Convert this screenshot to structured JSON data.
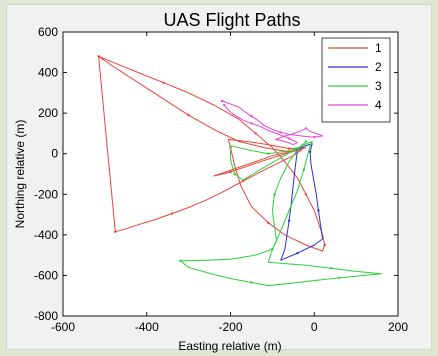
{
  "chart_data": {
    "type": "line",
    "title": "UAS Flight Paths",
    "xlabel": "Easting relative (m)",
    "ylabel": "Northing relative (m)",
    "xlim": [
      -600,
      200
    ],
    "ylim": [
      -800,
      600
    ],
    "x_ticks": [
      "-600",
      "-400",
      "-200",
      "0",
      "200"
    ],
    "y_ticks": [
      "600",
      "400",
      "200",
      "0",
      "-200",
      "-400",
      "-600",
      "-800"
    ],
    "grid": false,
    "legend_position": "top-right",
    "series": [
      {
        "name": "1",
        "color": "#e8453c",
        "points": [
          [
            -515,
            480
          ],
          [
            -480,
            430
          ],
          [
            -420,
            350
          ],
          [
            -360,
            270
          ],
          [
            -300,
            190
          ],
          [
            -240,
            120
          ],
          [
            -180,
            60
          ],
          [
            -120,
            30
          ],
          [
            -60,
            10
          ],
          [
            -30,
            20
          ],
          [
            -50,
            -10
          ],
          [
            -110,
            -70
          ],
          [
            -170,
            -135
          ],
          [
            -220,
            -190
          ],
          [
            -260,
            -230
          ],
          [
            -300,
            -265
          ],
          [
            -340,
            -295
          ],
          [
            -380,
            -325
          ],
          [
            -420,
            -350
          ],
          [
            -450,
            -370
          ],
          [
            -475,
            -385
          ],
          [
            -515,
            480
          ],
          [
            -480,
            450
          ],
          [
            -420,
            400
          ],
          [
            -360,
            350
          ],
          [
            -300,
            300
          ],
          [
            -240,
            240
          ],
          [
            -180,
            170
          ],
          [
            -140,
            100
          ],
          [
            -100,
            30
          ],
          [
            -70,
            -40
          ],
          [
            -40,
            -120
          ],
          [
            -20,
            -200
          ],
          [
            0,
            -280
          ],
          [
            10,
            -340
          ],
          [
            20,
            -400
          ],
          [
            25,
            -450
          ],
          [
            20,
            -480
          ],
          [
            -20,
            -450
          ],
          [
            -70,
            -400
          ],
          [
            -110,
            -340
          ],
          [
            -150,
            -260
          ],
          [
            -175,
            -160
          ],
          [
            -190,
            -60
          ],
          [
            -200,
            30
          ],
          [
            -205,
            70
          ],
          [
            -160,
            60
          ],
          [
            -110,
            45
          ],
          [
            -60,
            25
          ],
          [
            -20,
            30
          ],
          [
            -60,
            5
          ],
          [
            -130,
            -40
          ],
          [
            -200,
            -90
          ],
          [
            -240,
            -110
          ],
          [
            -170,
            -60
          ],
          [
            -100,
            -10
          ],
          [
            -40,
            20
          ]
        ]
      },
      {
        "name": "2",
        "color": "#2a33cc",
        "points": [
          [
            -40,
            20
          ],
          [
            -45,
            -60
          ],
          [
            -50,
            -150
          ],
          [
            -55,
            -250
          ],
          [
            -60,
            -330
          ],
          [
            -65,
            -400
          ],
          [
            -70,
            -470
          ],
          [
            -80,
            -525
          ],
          [
            -40,
            -490
          ],
          [
            0,
            -450
          ],
          [
            20,
            -420
          ],
          [
            15,
            -350
          ],
          [
            10,
            -280
          ],
          [
            5,
            -200
          ],
          [
            -2,
            -120
          ],
          [
            -8,
            -50
          ],
          [
            -10,
            10
          ],
          [
            -5,
            50
          ],
          [
            -20,
            40
          ],
          [
            -35,
            25
          ]
        ]
      },
      {
        "name": "3",
        "color": "#2fd13a",
        "points": [
          [
            -20,
            60
          ],
          [
            -40,
            20
          ],
          [
            -60,
            -40
          ],
          [
            -80,
            -120
          ],
          [
            -95,
            -200
          ],
          [
            -100,
            -280
          ],
          [
            -95,
            -360
          ],
          [
            -90,
            -430
          ],
          [
            -100,
            -470
          ],
          [
            -140,
            -500
          ],
          [
            -200,
            -520
          ],
          [
            -260,
            -525
          ],
          [
            -320,
            -528
          ],
          [
            -300,
            -560
          ],
          [
            -250,
            -590
          ],
          [
            -200,
            -615
          ],
          [
            -150,
            -635
          ],
          [
            -110,
            -650
          ],
          [
            -60,
            -640
          ],
          [
            0,
            -625
          ],
          [
            60,
            -612
          ],
          [
            120,
            -600
          ],
          [
            160,
            -592
          ],
          [
            100,
            -580
          ],
          [
            40,
            -565
          ],
          [
            -20,
            -550
          ],
          [
            -80,
            -540
          ],
          [
            -110,
            -535
          ],
          [
            -100,
            -470
          ],
          [
            -80,
            -380
          ],
          [
            -60,
            -280
          ],
          [
            -40,
            -180
          ],
          [
            -25,
            -80
          ],
          [
            -15,
            0
          ],
          [
            -10,
            40
          ],
          [
            -5,
            60
          ],
          [
            -30,
            40
          ],
          [
            -80,
            -20
          ],
          [
            -130,
            -80
          ],
          [
            -170,
            -130
          ],
          [
            -190,
            -100
          ],
          [
            -200,
            -30
          ],
          [
            -200,
            40
          ],
          [
            -160,
            20
          ],
          [
            -110,
            0
          ],
          [
            -60,
            15
          ],
          [
            -40,
            30
          ]
        ]
      },
      {
        "name": "4",
        "color": "#e44ad6",
        "points": [
          [
            -220,
            260
          ],
          [
            -200,
            245
          ],
          [
            -180,
            230
          ],
          [
            -165,
            205
          ],
          [
            -150,
            185
          ],
          [
            -135,
            165
          ],
          [
            -120,
            140
          ],
          [
            -100,
            120
          ],
          [
            -80,
            105
          ],
          [
            -60,
            95
          ],
          [
            -40,
            90
          ],
          [
            -20,
            85
          ],
          [
            0,
            82
          ],
          [
            20,
            88
          ],
          [
            10,
            95
          ],
          [
            -10,
            110
          ],
          [
            -20,
            125
          ],
          [
            -35,
            110
          ],
          [
            -55,
            95
          ],
          [
            -75,
            85
          ],
          [
            -90,
            70
          ],
          [
            -70,
            60
          ],
          [
            -50,
            45
          ],
          [
            -40,
            55
          ],
          [
            -60,
            75
          ],
          [
            -85,
            95
          ],
          [
            -110,
            115
          ],
          [
            -130,
            135
          ],
          [
            -150,
            150
          ],
          [
            -170,
            165
          ],
          [
            -190,
            190
          ],
          [
            -205,
            215
          ],
          [
            -215,
            240
          ]
        ]
      }
    ]
  }
}
